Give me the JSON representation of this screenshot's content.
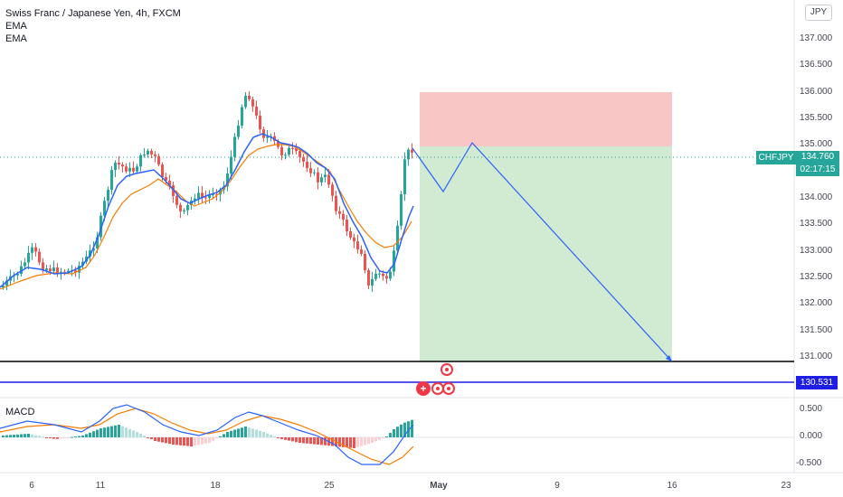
{
  "legend": {
    "symbol_title": "Swiss Franc / Japanese Yen, 4h, FXCM",
    "indicator_1": "EMA",
    "indicator_2": "EMA"
  },
  "currency_badge": "JPY",
  "symbol_tag": "CHFJPY",
  "last_price": "134.760",
  "countdown": "02:17:15",
  "horizontal_line_price": "130.531",
  "macd_label": "MACD",
  "price_axis_labels": [
    "137.000",
    "136.500",
    "136.000",
    "135.500",
    "135.000",
    "134.000",
    "133.500",
    "133.000",
    "132.500",
    "132.000",
    "131.500",
    "131.000"
  ],
  "macd_axis_labels": [
    "0.500",
    "0.000",
    "-0.500"
  ],
  "time_axis_labels": [
    "6",
    "11",
    "18",
    "25",
    "May",
    "9",
    "16",
    "23"
  ],
  "colors": {
    "up_candle": "#26a69a",
    "down_candle": "#ef5350",
    "ema_fast": "#2962ff",
    "ema_slow": "#f57c00",
    "stop_zone": "#f9c6c6",
    "target_zone": "#d1ead2",
    "horizontal_line": "#1e1ee6",
    "projection_line": "#2962ff"
  },
  "chart_data": {
    "type": "candlestick",
    "price_range": [
      130.531,
      137.3
    ],
    "position_tool": {
      "side": "short",
      "entry": 135.0,
      "stop": 136.0,
      "target": 130.9
    }
  }
}
